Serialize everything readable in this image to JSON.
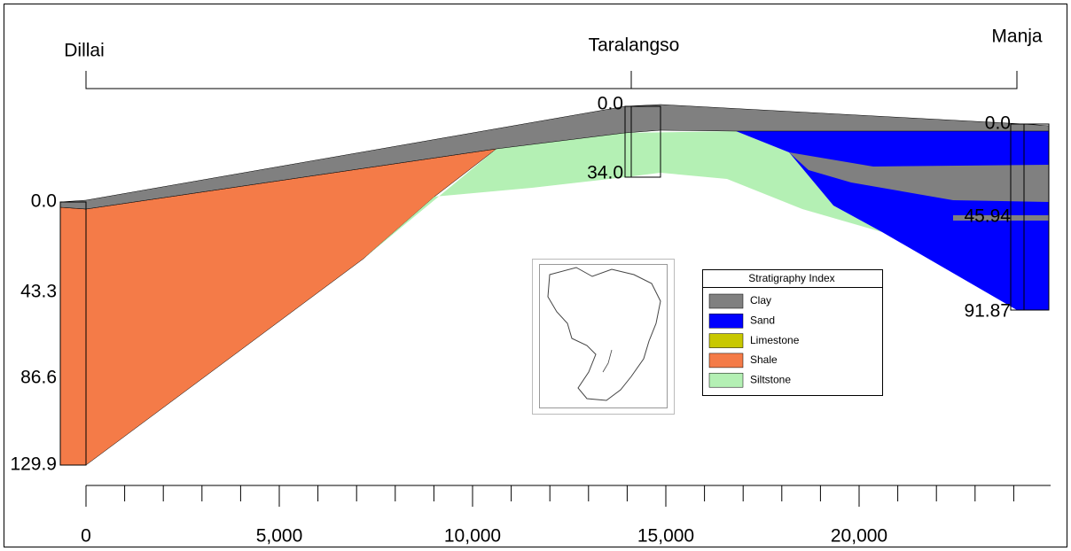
{
  "wells": [
    {
      "name": "Dillai",
      "depths": [
        "0.0",
        "43.3",
        "86.6",
        "129.9"
      ]
    },
    {
      "name": "Taralangso",
      "depths": [
        "0.0",
        "34.0"
      ]
    },
    {
      "name": "Manja",
      "depths": [
        "0.0",
        "45.94",
        "91.87"
      ]
    }
  ],
  "x_axis": {
    "ticks": [
      "0",
      "5,000",
      "10,000",
      "15,000",
      "20,000"
    ]
  },
  "legend": {
    "title": "Stratigraphy Index",
    "items": [
      {
        "label": "Clay",
        "color": "#808080"
      },
      {
        "label": "Sand",
        "color": "#0000ff"
      },
      {
        "label": "Limestone",
        "color": "#c8c800"
      },
      {
        "label": "Shale",
        "color": "#f47b48"
      },
      {
        "label": "Siltstone",
        "color": "#b4f0b4"
      }
    ]
  }
}
